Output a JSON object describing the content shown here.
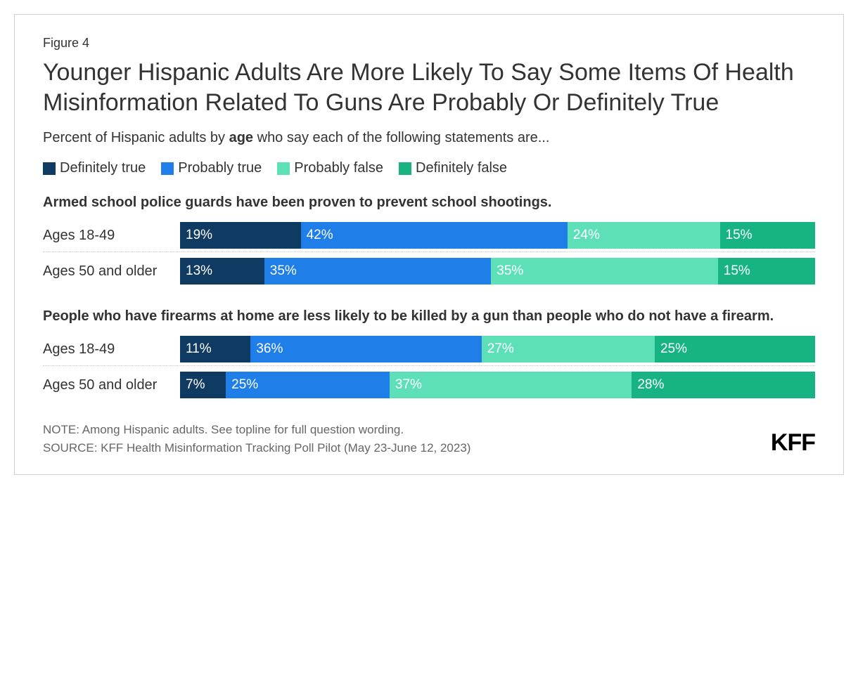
{
  "figure_label": "Figure 4",
  "title": "Younger Hispanic Adults Are More Likely To Say Some Items Of Health Misinformation Related To Guns Are Probably Or Definitely True",
  "subtitle_prefix": "Percent of Hispanic adults by ",
  "subtitle_bold": "age",
  "subtitle_suffix": " who say each of the following statements are...",
  "legend": [
    {
      "label": "Definitely true",
      "color": "#0f3b63"
    },
    {
      "label": "Probably true",
      "color": "#1f7ee8"
    },
    {
      "label": "Probably false",
      "color": "#5de0b8"
    },
    {
      "label": "Definitely false",
      "color": "#17b383"
    }
  ],
  "groups": [
    {
      "title": "Armed school police guards have been proven to prevent school shootings.",
      "rows": [
        {
          "label": "Ages 18-49",
          "segments": [
            {
              "value": 19,
              "display": "19%",
              "color": "#0f3b63"
            },
            {
              "value": 42,
              "display": "42%",
              "color": "#1f7ee8"
            },
            {
              "value": 24,
              "display": "24%",
              "color": "#5de0b8"
            },
            {
              "value": 15,
              "display": "15%",
              "color": "#17b383"
            }
          ]
        },
        {
          "label": "Ages 50 and older",
          "segments": [
            {
              "value": 13,
              "display": "13%",
              "color": "#0f3b63"
            },
            {
              "value": 35,
              "display": "35%",
              "color": "#1f7ee8"
            },
            {
              "value": 35,
              "display": "35%",
              "color": "#5de0b8"
            },
            {
              "value": 15,
              "display": "15%",
              "color": "#17b383"
            }
          ]
        }
      ]
    },
    {
      "title": "People who have firearms at home are less likely to be killed by a gun than people who do not have a firearm.",
      "rows": [
        {
          "label": "Ages 18-49",
          "segments": [
            {
              "value": 11,
              "display": "11%",
              "color": "#0f3b63"
            },
            {
              "value": 36,
              "display": "36%",
              "color": "#1f7ee8"
            },
            {
              "value": 27,
              "display": "27%",
              "color": "#5de0b8"
            },
            {
              "value": 25,
              "display": "25%",
              "color": "#17b383"
            }
          ]
        },
        {
          "label": "Ages 50 and older",
          "segments": [
            {
              "value": 7,
              "display": "7%",
              "color": "#0f3b63"
            },
            {
              "value": 25,
              "display": "25%",
              "color": "#1f7ee8"
            },
            {
              "value": 37,
              "display": "37%",
              "color": "#5de0b8"
            },
            {
              "value": 28,
              "display": "28%",
              "color": "#17b383"
            }
          ]
        }
      ]
    }
  ],
  "note": "NOTE: Among Hispanic adults. See topline for full question wording.",
  "source": "SOURCE: KFF Health Misinformation Tracking Poll Pilot (May 23-June 12, 2023)",
  "logo": "KFF",
  "bar_total_scale": 100
}
